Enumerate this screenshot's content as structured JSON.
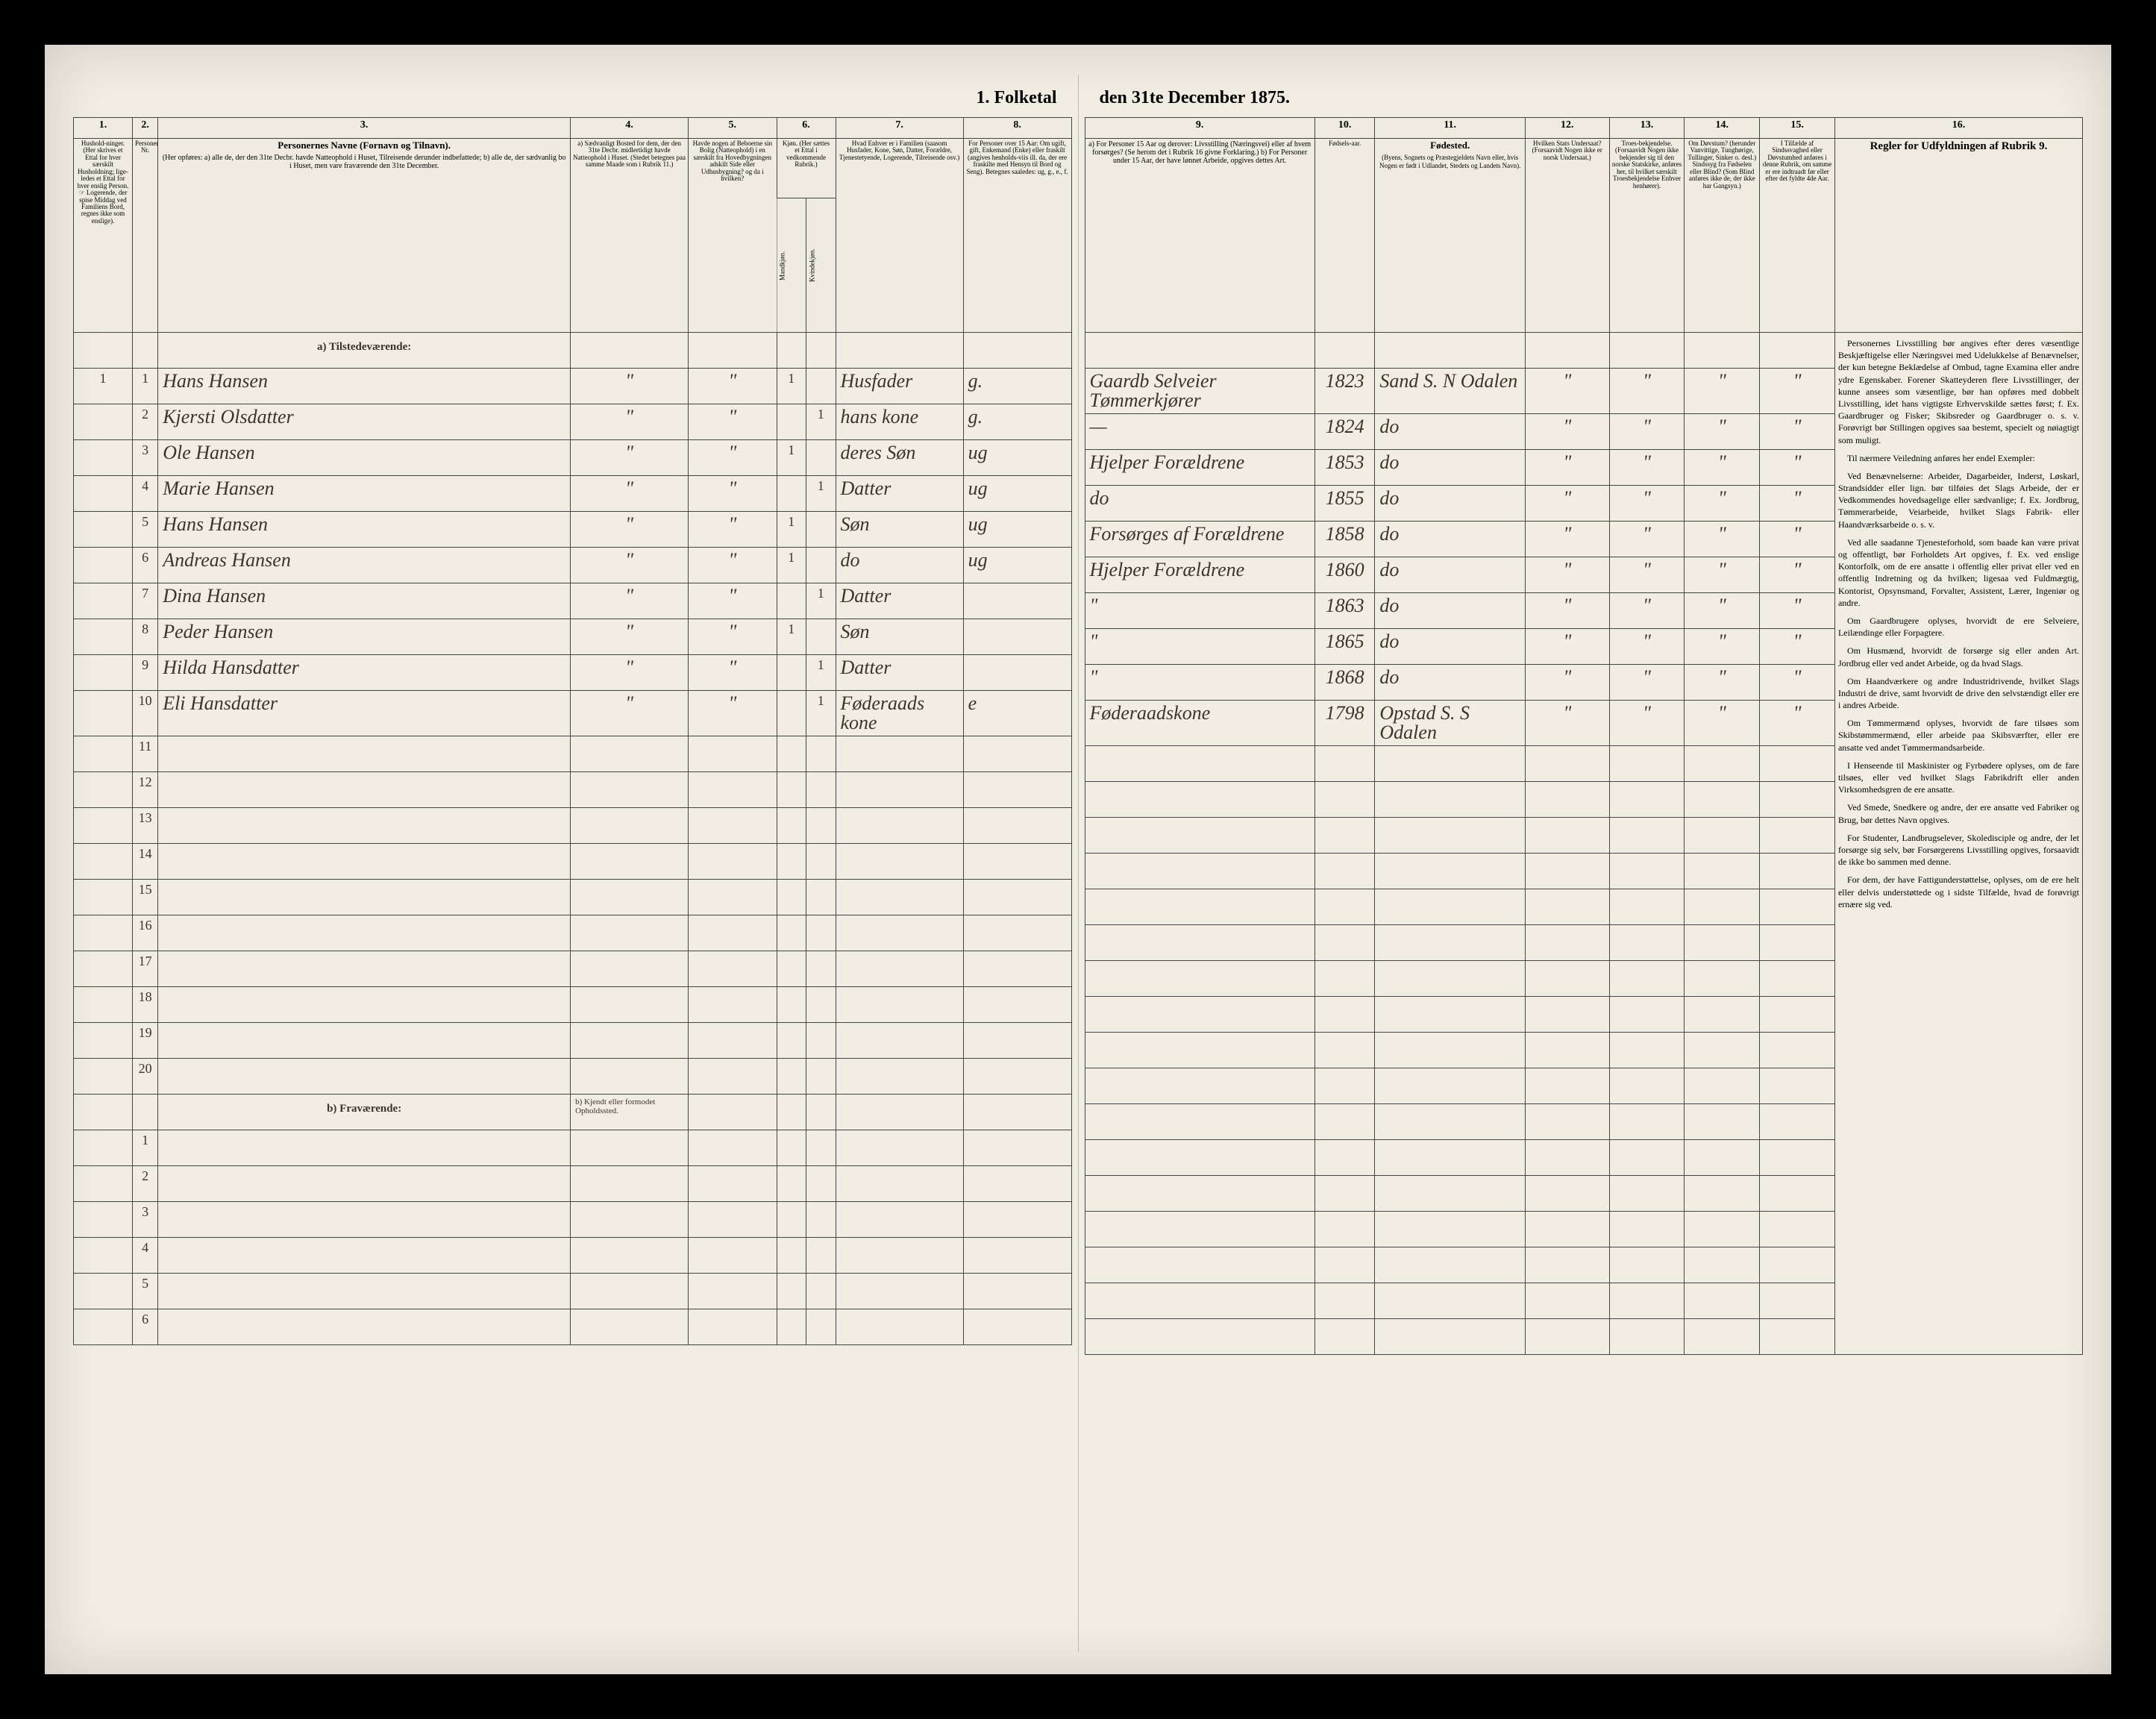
{
  "document_title_left": "1. Folketal",
  "document_title_right": "den 31te December 1875.",
  "colnums_left": [
    "1.",
    "2.",
    "3.",
    "4.",
    "5.",
    "6.",
    "7.",
    "8."
  ],
  "colnums_right": [
    "9.",
    "10.",
    "11.",
    "12.",
    "13.",
    "14.",
    "15.",
    "16."
  ],
  "headers_left": {
    "c1": "Hushold-ninger.\n(Her skrives et Ettal for hver særskilt Husholdning; lige-ledes et Ettal for hver enslig Person.\n☞ Logerende, der spise Middag ved Familiens Bord, regnes ikke som enslige).",
    "c2": "Personernes Nr.",
    "c3_title": "Personernes Navne (Fornavn og Tilnavn).",
    "c3_body": "(Her opføres:\na) alle de, der den 31te Decbr. havde Natteophold i Huset, Tilreisende derunder indbefattede;\nb) alle de, der sædvanlig bo i Huset, men vare fraværende den 31te December.",
    "c4": "a) Sædvanligt Bosted for dem, der den 31te Decbr. midlertidigt havde Natteophold i Huset.\n(Stedet betegnes paa samme Maade som i Rubrik 11.)",
    "c5": "Havde nogen af Beboerne sin Bolig (Natteophold) i en særskilt fra Hovedbygningen adskilt Side eller Udhusbygning? og da i hvilken?",
    "c6": "Kjøn.\n(Her sættes et Ettal i vedkommende Rubrik.)",
    "c6m": "Mandkjøn.",
    "c6k": "Kvindekjøn.",
    "c7": "Hvad Enhver er i Familien\n(saasom Husfader, Kone, Søn, Datter, Forældre, Tjenestetyende, Logerende, Tilreisende osv.)",
    "c8": "For Personer over 15 Aar: Om ugift, gift, Enkemand (Enke) eller fraskilt (angives henholds-viis ill. da, der ere fraskilte med Hensyn til Bord og Seng).\nBetegnes saaledes:\nug, g., e., f."
  },
  "headers_right": {
    "c9": "a) For Personer 15 Aar og derover: Livsstilling (Næringsvei) eller af hvem forsørges? (Se herom det i Rubrik 16 givne Forklaring.)\nb) For Personer under 15 Aar, der have lønnet Arbeide, opgives dettes Art.",
    "c10": "Fødsels-aar.",
    "c11_title": "Fødested.",
    "c11_body": "(Byens, Sognets og Præstegjeldets Navn eller, hvis Nogen er født i Udlandet, Stedets og Landets Navn).",
    "c12": "Hvilken Stats Undersaat?\n(Forsaavidt Nogen ikke er norsk Undersaat.)",
    "c13": "Troes-bekjendelse.\n(Forsaavidt Nogen ikke bekjender sig til den norske Statskirke, anføres her, til hvilket særskilt Troesbekjendelse Enhver henhører).",
    "c14": "Om Døvstum? (herunder Vanvittige, Tunghørige, Tullinger, Sinker o. desl.) Sindssyg fra Fødselen eller Blind? (Som Blind anføres ikke de, der ikke har Gangsyn.)",
    "c15": "I Tilfælde af Sindssvaghed eller Døvstumhed anføres i denne Rubrik, om samme er ere indtraadt før eller efter det fyldte 4de Aar.",
    "c16_title": "Regler for Udfyldningen\naf\nRubrik 9."
  },
  "section_a": "a) Tilstedeværende:",
  "section_b": "b) Fraværende:",
  "section_b_c4": "b) Kjendt eller formodet Opholdssted.",
  "rows": [
    {
      "n": "1",
      "name": "Hans Hansen",
      "c4": "\"",
      "c5": "\"",
      "m": "1",
      "k": "",
      "rel": "Husfader",
      "civ": "g.",
      "occ": "Gaardb Selveier Tømmerkjører",
      "year": "1823",
      "birthplace": "Sand S. N Odalen",
      "c12": "\"",
      "c13": "\"",
      "c14": "\"",
      "c15": "\""
    },
    {
      "n": "2",
      "name": "Kjersti Olsdatter",
      "c4": "\"",
      "c5": "\"",
      "m": "",
      "k": "1",
      "rel": "hans kone",
      "civ": "g.",
      "occ": "—",
      "year": "1824",
      "birthplace": "do",
      "c12": "\"",
      "c13": "\"",
      "c14": "\"",
      "c15": "\""
    },
    {
      "n": "3",
      "name": "Ole Hansen",
      "c4": "\"",
      "c5": "\"",
      "m": "1",
      "k": "",
      "rel": "deres Søn",
      "civ": "ug",
      "occ": "Hjelper Forældrene",
      "year": "1853",
      "birthplace": "do",
      "c12": "\"",
      "c13": "\"",
      "c14": "\"",
      "c15": "\""
    },
    {
      "n": "4",
      "name": "Marie Hansen",
      "c4": "\"",
      "c5": "\"",
      "m": "",
      "k": "1",
      "rel": "Datter",
      "civ": "ug",
      "occ": "do",
      "year": "1855",
      "birthplace": "do",
      "c12": "\"",
      "c13": "\"",
      "c14": "\"",
      "c15": "\""
    },
    {
      "n": "5",
      "name": "Hans Hansen",
      "c4": "\"",
      "c5": "\"",
      "m": "1",
      "k": "",
      "rel": "Søn",
      "civ": "ug",
      "occ": "Forsørges af Forældrene",
      "year": "1858",
      "birthplace": "do",
      "c12": "\"",
      "c13": "\"",
      "c14": "\"",
      "c15": "\""
    },
    {
      "n": "6",
      "name": "Andreas Hansen",
      "c4": "\"",
      "c5": "\"",
      "m": "1",
      "k": "",
      "rel": "do",
      "civ": "ug",
      "occ": "Hjelper Forældrene",
      "year": "1860",
      "birthplace": "do",
      "c12": "\"",
      "c13": "\"",
      "c14": "\"",
      "c15": "\""
    },
    {
      "n": "7",
      "name": "Dina Hansen",
      "c4": "\"",
      "c5": "\"",
      "m": "",
      "k": "1",
      "rel": "Datter",
      "civ": "",
      "occ": "\"",
      "year": "1863",
      "birthplace": "do",
      "c12": "\"",
      "c13": "\"",
      "c14": "\"",
      "c15": "\""
    },
    {
      "n": "8",
      "name": "Peder Hansen",
      "c4": "\"",
      "c5": "\"",
      "m": "1",
      "k": "",
      "rel": "Søn",
      "civ": "",
      "occ": "\"",
      "year": "1865",
      "birthplace": "do",
      "c12": "\"",
      "c13": "\"",
      "c14": "\"",
      "c15": "\""
    },
    {
      "n": "9",
      "name": "Hilda Hansdatter",
      "c4": "\"",
      "c5": "\"",
      "m": "",
      "k": "1",
      "rel": "Datter",
      "civ": "",
      "occ": "\"",
      "year": "1868",
      "birthplace": "do",
      "c12": "\"",
      "c13": "\"",
      "c14": "\"",
      "c15": "\""
    },
    {
      "n": "10",
      "name": "Eli Hansdatter",
      "c4": "\"",
      "c5": "\"",
      "m": "",
      "k": "1",
      "rel": "Føderaads kone",
      "civ": "e",
      "occ": "Føderaadskone",
      "year": "1798",
      "birthplace": "Opstad S. S Odalen",
      "c12": "\"",
      "c13": "\"",
      "c14": "\"",
      "c15": "\""
    }
  ],
  "empty_rows_a": [
    "11",
    "12",
    "13",
    "14",
    "15",
    "16",
    "17",
    "18",
    "19",
    "20"
  ],
  "empty_rows_b": [
    "1",
    "2",
    "3",
    "4",
    "5",
    "6"
  ],
  "instructions": [
    "Personernes Livsstilling bør angives efter deres væsentlige Beskjæftigelse eller Næringsvei med Udelukkelse af Benævnelser, der kun betegne Beklædelse af Ombud, tagne Examina eller andre ydre Egenskaber.  Forener Skatteyderen flere Livsstillinger, der kunne ansees som væsentlige, bør han opføres med dobbelt Livsstilling, idet hans vigtigste Erhvervskilde sættes først; f. Ex. Gaardbruger og Fisker; Skibsreder og Gaardbruger o. s. v.  Forøvrigt bør Stillingen opgives saa bestemt, specielt og nøiagtigt som muligt.",
    "Til nærmere Veiledning anføres her endel Exempler:",
    "Ved Benævnelserne: Arbeider, Dagarbeider, Inderst, Løskarl, Strandsidder eller lign. bør tilføies det Slags Arbeide, der er Vedkommendes hovedsagelige eller sædvanlige; f. Ex. Jordbrug, Tømmerarbeide, Veiarbeide, hvilket Slags Fabrik- eller Haandværksarbeide o. s. v.",
    "Ved alle saadanne Tjenesteforhold, som baade kan være privat og offentligt, bør Forholdets Art opgives, f. Ex. ved enslige Kontorfolk, om de ere ansatte i offentlig eller privat eller ved en offentlig Indretning og da hvilken; ligesaa ved Fuldmægtig, Kontorist, Opsynsmand, Forvalter, Assistent, Lærer, Ingeniør og andre.",
    "Om Gaardbrugere oplyses, hvorvidt de ere Selveiere, Leilændinge eller Forpagtere.",
    "Om Husmænd, hvorvidt de forsørge sig eller anden Art. Jordbrug eller ved andet Arbeide, og da hvad Slags.",
    "Om Haandværkere og andre Industridrivende, hvilket Slags Industri de drive, samt hvorvidt de drive den selvstændigt eller ere i andres Arbeide.",
    "Om Tømmermænd oplyses, hvorvidt de fare tilsøes som Skibstømmermænd, eller arbeide paa Skibsværfter, eller ere ansatte ved andet Tømmermandsarbeide.",
    "I Henseende til Maskinister og Fyrbødere oplyses, om de fare tilsøes, eller ved hvilket Slags Fabrikdrift eller anden Virksomhedsgren de ere ansatte.",
    "Ved Smede, Snedkere og andre, der ere ansatte ved Fabriker og Brug, bør dettes Navn opgives.",
    "For Studenter, Landbrugselever, Skoledisciple og andre, der let forsørge sig selv, bør Forsørgerens Livsstilling opgives, forsaavidt de ikke bo sammen med denne.",
    "For dem, der have Fattigunderstøttelse, oplyses, om de ere helt eller delvis understøttede og i sidste Tilfælde, hvad de forøvrigt ernære sig ved."
  ]
}
